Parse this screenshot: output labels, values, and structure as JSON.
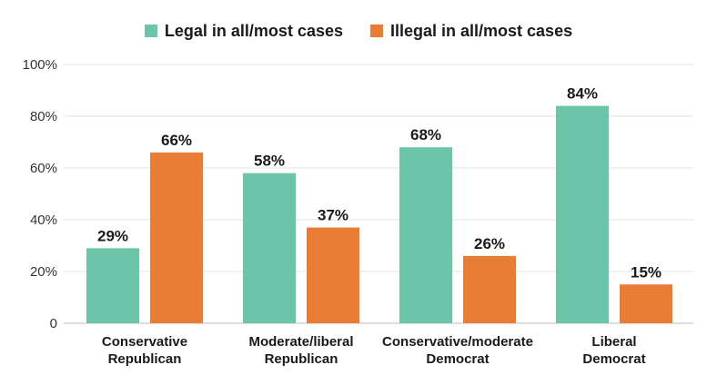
{
  "chart_data": {
    "type": "bar",
    "categories": [
      [
        "Conservative",
        "Republican"
      ],
      [
        "Moderate/liberal",
        "Republican"
      ],
      [
        "Conservative/moderate",
        "Democrat"
      ],
      [
        "Liberal",
        "Democrat"
      ]
    ],
    "series": [
      {
        "name": "Legal in all/most cases",
        "color": "#6cc5a8",
        "values": [
          29,
          58,
          68,
          84
        ]
      },
      {
        "name": "Illegal in all/most cases",
        "color": "#ea7d36",
        "values": [
          66,
          37,
          26,
          15
        ]
      }
    ],
    "value_labels": [
      [
        "29%",
        "58%",
        "68%",
        "84%"
      ],
      [
        "66%",
        "37%",
        "26%",
        "15%"
      ]
    ],
    "ylim": [
      0,
      100
    ],
    "yticks": [
      0,
      20,
      40,
      60,
      80,
      100
    ],
    "ytick_labels": [
      "0",
      "20%",
      "40%",
      "60%",
      "80%",
      "100%"
    ],
    "grid": true,
    "legend_position": "top-center"
  }
}
